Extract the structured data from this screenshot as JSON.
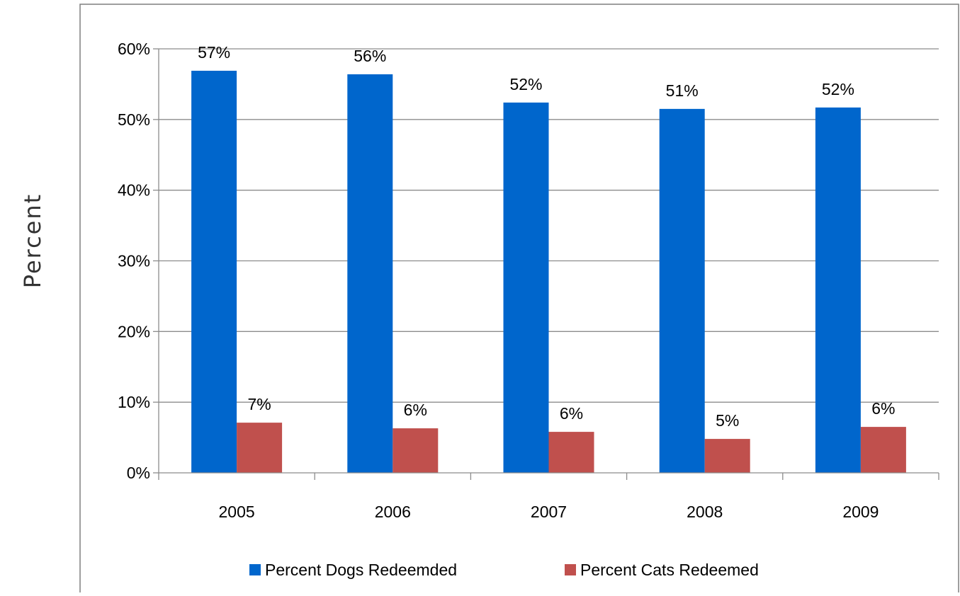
{
  "chart_data": {
    "type": "bar",
    "title": "",
    "xlabel": "",
    "ylabel": "Percent",
    "categories": [
      "2005",
      "2006",
      "2007",
      "2008",
      "2009"
    ],
    "ylim": [
      0,
      60
    ],
    "yticks": [
      0,
      10,
      20,
      30,
      40,
      50,
      60
    ],
    "ytick_format": "{v}%",
    "grid": "horizontal",
    "legend_position": "bottom",
    "series": [
      {
        "name": "Percent Dogs Redeemded",
        "color": "#0066CC",
        "values": [
          56.9,
          56.4,
          52.4,
          51.5,
          51.7
        ],
        "labels": [
          "57%",
          "56%",
          "52%",
          "51%",
          "52%"
        ]
      },
      {
        "name": "Percent Cats Redeemed",
        "color": "#C0504D",
        "values": [
          7.1,
          6.3,
          5.8,
          4.8,
          6.5
        ],
        "labels": [
          "7%",
          "6%",
          "6%",
          "5%",
          "6%"
        ]
      }
    ]
  }
}
